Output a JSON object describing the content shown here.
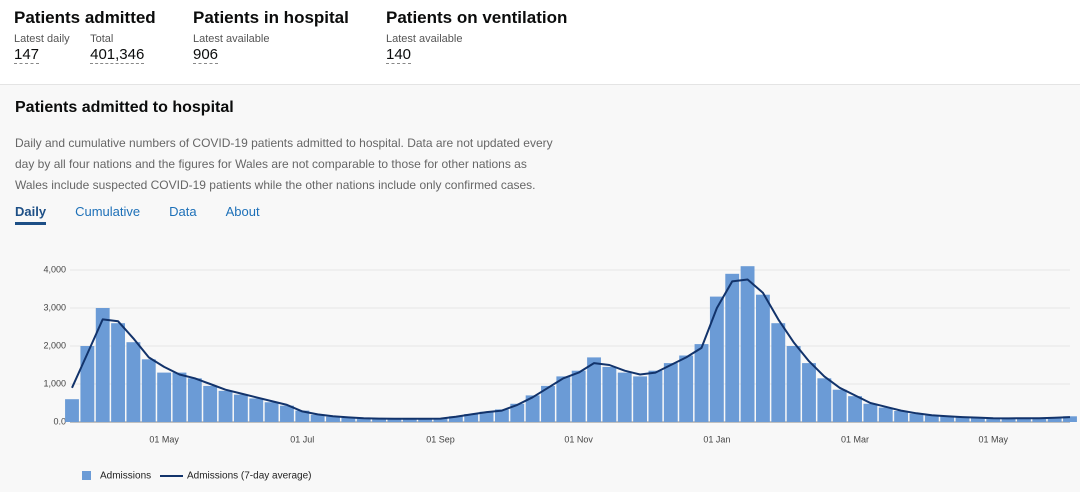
{
  "headline": [
    {
      "title": "Patients admitted",
      "items": [
        {
          "label": "Latest daily",
          "value": "147"
        },
        {
          "label": "Total",
          "value": "401,346"
        }
      ]
    },
    {
      "title": "Patients in hospital",
      "items": [
        {
          "label": "Latest available",
          "value": "906"
        }
      ]
    },
    {
      "title": "Patients on ventilation",
      "items": [
        {
          "label": "Latest available",
          "value": "140"
        }
      ]
    }
  ],
  "card": {
    "title": "Patients admitted to hospital",
    "description": "Daily and cumulative numbers of COVID-19 patients admitted to hospital. Data are not updated every day by all four nations and the figures for Wales are not comparable to those for other nations as Wales include suspected COVID-19 patients while the other nations include only confirmed cases.",
    "tabs": [
      "Daily",
      "Cumulative",
      "Data",
      "About"
    ]
  },
  "chart_data": {
    "type": "bar",
    "categories": [
      null,
      null,
      null,
      null,
      null,
      null,
      "01 May",
      null,
      null,
      null,
      null,
      null,
      null,
      null,
      null,
      "01 Jul",
      null,
      null,
      null,
      null,
      null,
      null,
      null,
      null,
      "01 Sep",
      null,
      null,
      null,
      null,
      null,
      null,
      null,
      null,
      "01 Nov",
      null,
      null,
      null,
      null,
      null,
      null,
      null,
      null,
      "01 Jan",
      null,
      null,
      null,
      null,
      null,
      null,
      null,
      null,
      "01 Mar",
      null,
      null,
      null,
      null,
      null,
      null,
      null,
      null,
      "01 May",
      null,
      null,
      null,
      null,
      null
    ],
    "series": [
      {
        "name": "Admissions",
        "color": "#6b9bd6",
        "values": [
          600,
          2000,
          3000,
          2600,
          2100,
          1650,
          1300,
          1300,
          1150,
          950,
          820,
          720,
          620,
          520,
          430,
          300,
          190,
          140,
          110,
          95,
          85,
          80,
          85,
          80,
          95,
          150,
          210,
          270,
          330,
          480,
          700,
          950,
          1200,
          1350,
          1700,
          1450,
          1300,
          1200,
          1350,
          1550,
          1750,
          2050,
          3300,
          3900,
          4100,
          3350,
          2600,
          2000,
          1550,
          1150,
          850,
          680,
          480,
          380,
          290,
          220,
          170,
          145,
          125,
          110,
          95,
          90,
          100,
          95,
          110,
          150
        ]
      },
      {
        "name": "Admissions (7-day average)",
        "color": "#12336b",
        "values": [
          900,
          1800,
          2700,
          2650,
          2200,
          1700,
          1450,
          1250,
          1150,
          1000,
          850,
          750,
          650,
          550,
          450,
          280,
          200,
          150,
          120,
          100,
          90,
          85,
          85,
          85,
          90,
          140,
          200,
          260,
          300,
          450,
          650,
          900,
          1150,
          1300,
          1550,
          1500,
          1350,
          1250,
          1300,
          1500,
          1700,
          1950,
          3000,
          3700,
          3750,
          3400,
          2700,
          2100,
          1600,
          1200,
          900,
          700,
          500,
          400,
          300,
          230,
          180,
          150,
          130,
          115,
          100,
          95,
          100,
          100,
          110,
          130
        ]
      }
    ],
    "ylim": [
      0,
      4000
    ],
    "yticks": [
      {
        "value": 0,
        "label": "0.0"
      },
      {
        "value": 1000,
        "label": "1,000"
      },
      {
        "value": 2000,
        "label": "2,000"
      },
      {
        "value": 3000,
        "label": "3,000"
      },
      {
        "value": 4000,
        "label": "4,000"
      }
    ],
    "grid": true
  }
}
